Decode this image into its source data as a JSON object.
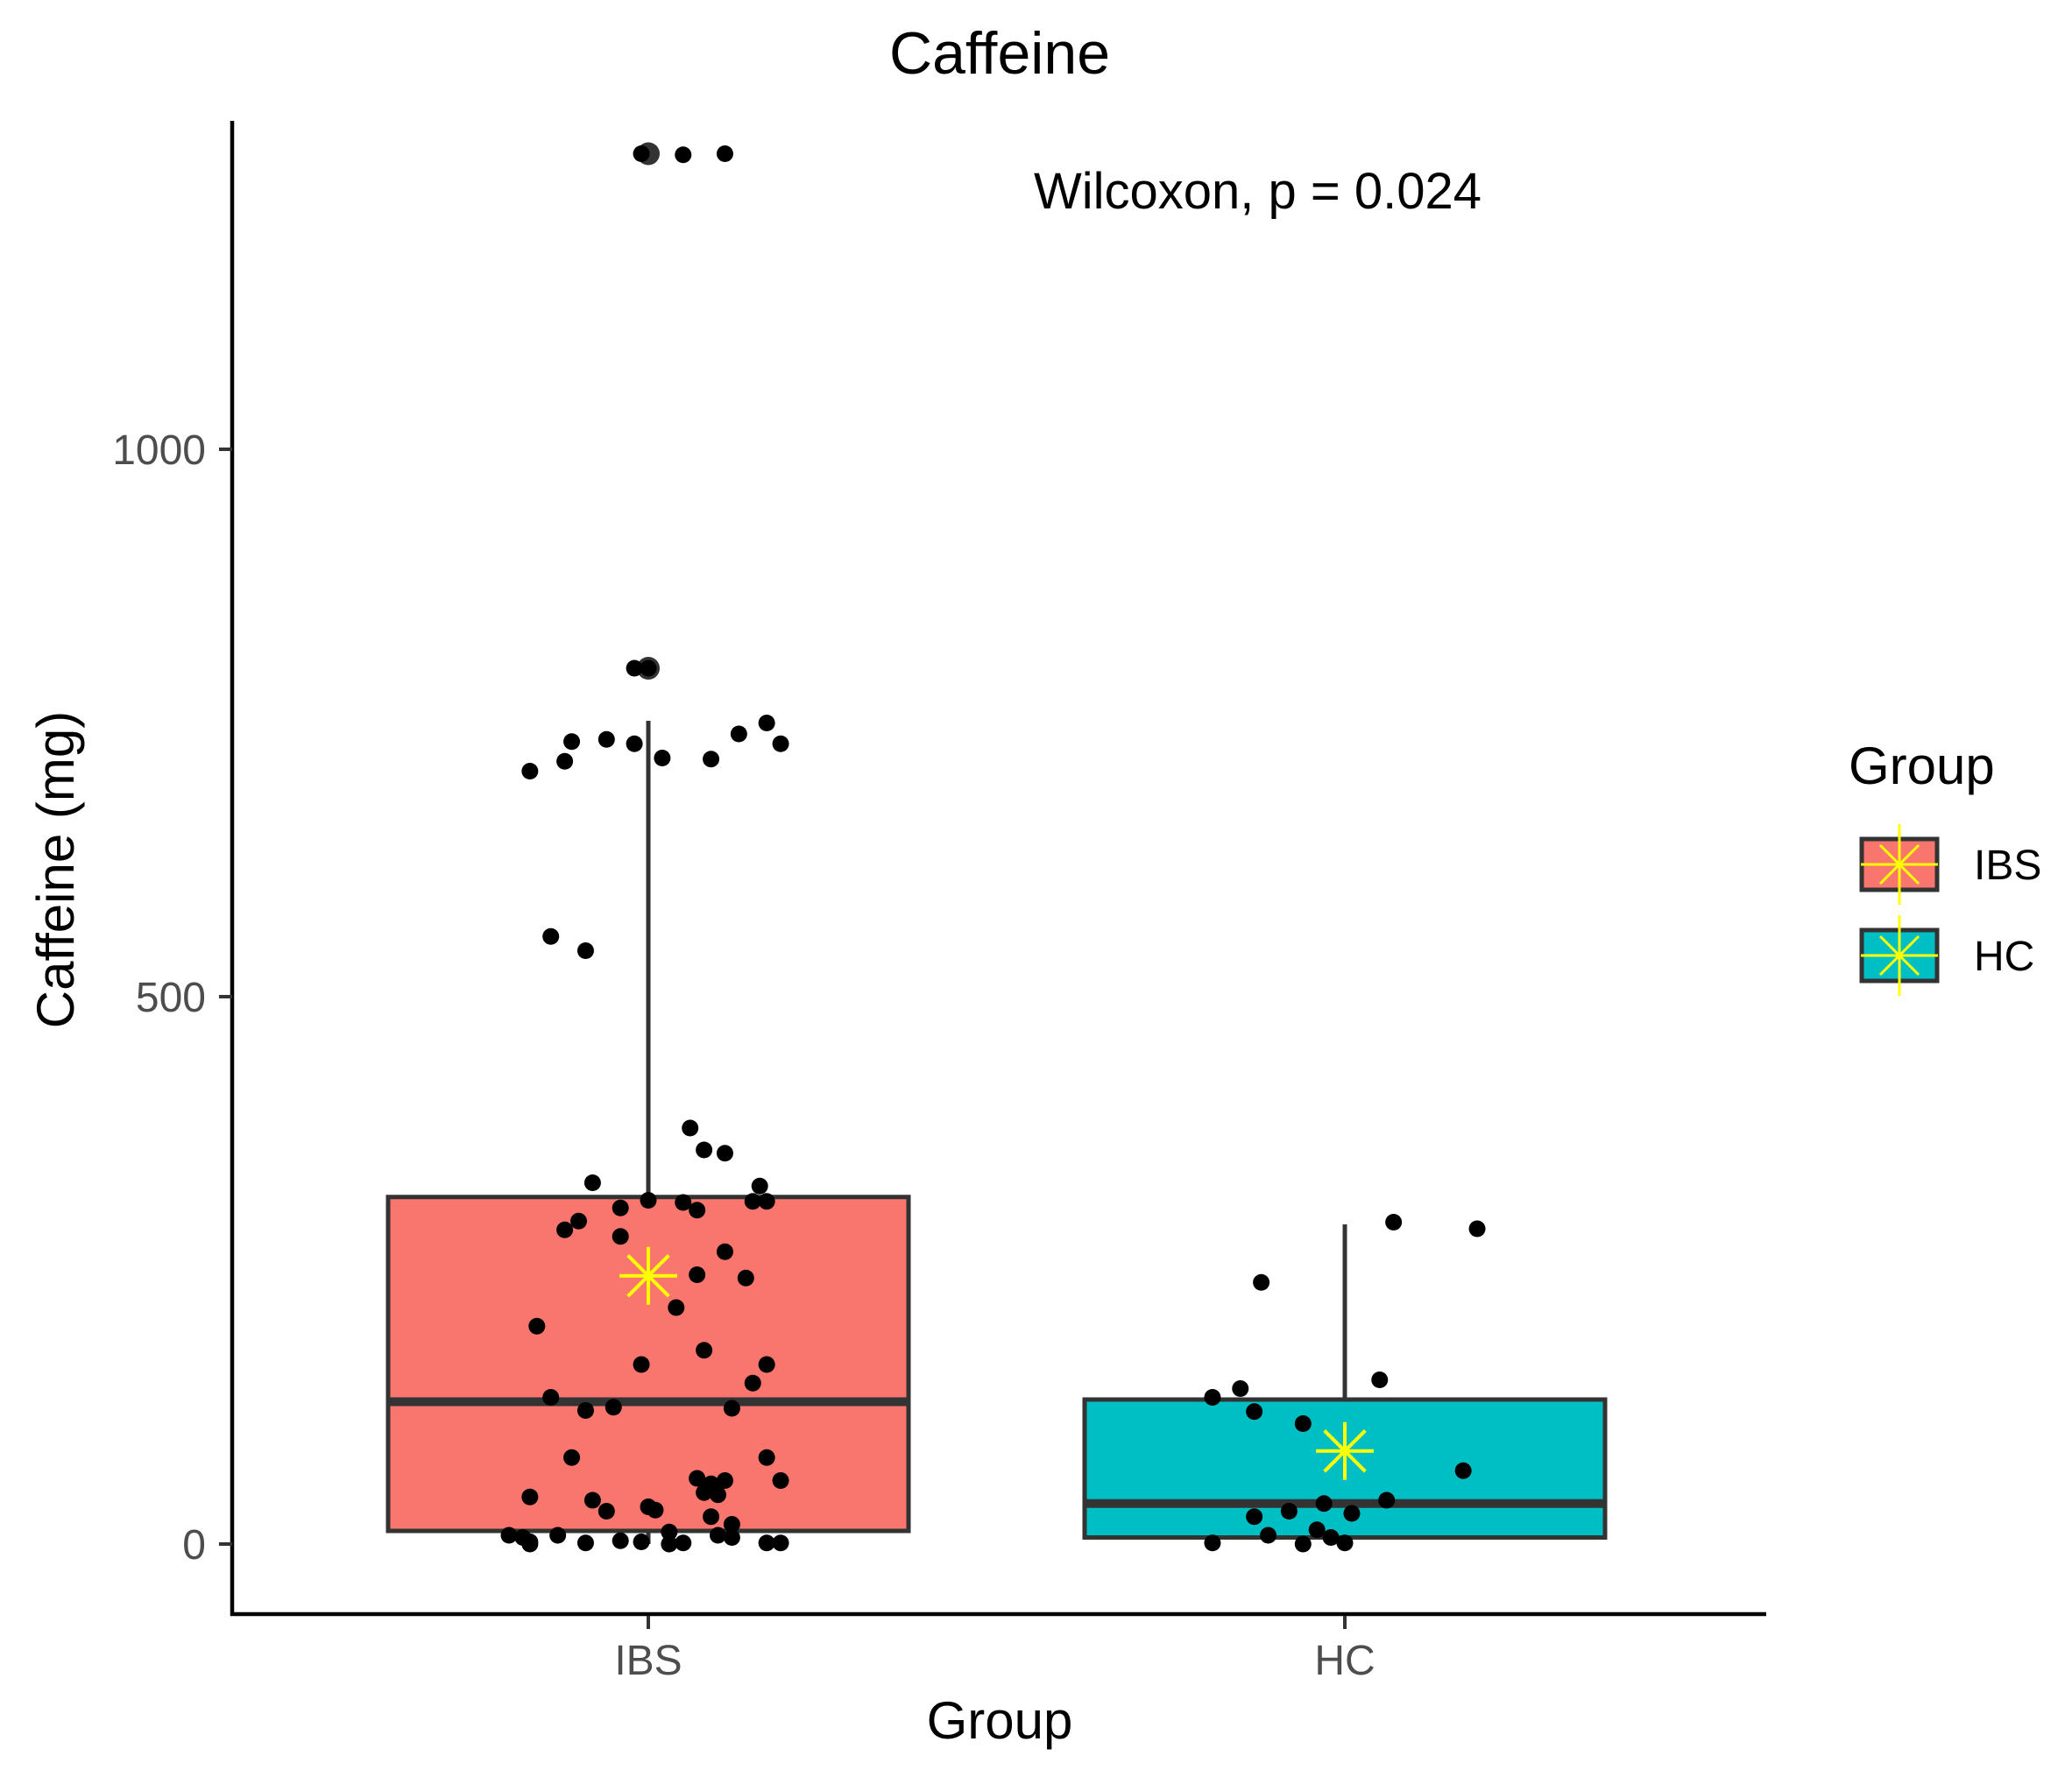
{
  "chart_data": {
    "type": "boxplot",
    "title": "Caffeine",
    "xlabel": "Group",
    "ylabel": "Caffeine (mg)",
    "ylim": [
      -64,
      1300
    ],
    "yticks": [
      0,
      500,
      1000
    ],
    "categories": [
      "IBS",
      "HC"
    ],
    "annotation": "Wilcoxon, p = 0.024",
    "legend": {
      "title": "Group",
      "position": "right",
      "entries": [
        {
          "label": "IBS",
          "fill": "#F8766D"
        },
        {
          "label": "HC",
          "fill": "#00BFC4"
        }
      ]
    },
    "colors": {
      "IBS": "#F8766D",
      "HC": "#00BFC4",
      "mean_marker": "#FFFF00",
      "box_line": "#333333",
      "point": "#000000"
    },
    "series": [
      {
        "name": "IBS",
        "box": {
          "q1": 12,
          "median": 130,
          "q3": 317,
          "whisker_low": 0,
          "whisker_high": 752
        },
        "mean": 245,
        "outliers": [
          1270,
          800
        ],
        "points": [
          {
            "x_offset": -0.01,
            "y": 1270
          },
          {
            "x_offset": 0.05,
            "y": 1269
          },
          {
            "x_offset": 0.11,
            "y": 1270
          },
          {
            "x_offset": -0.02,
            "y": 800
          },
          {
            "x_offset": 0.0,
            "y": 800
          },
          {
            "x_offset": -0.17,
            "y": 706
          },
          {
            "x_offset": -0.12,
            "y": 715
          },
          {
            "x_offset": -0.11,
            "y": 733
          },
          {
            "x_offset": -0.06,
            "y": 735
          },
          {
            "x_offset": -0.02,
            "y": 731
          },
          {
            "x_offset": 0.02,
            "y": 718
          },
          {
            "x_offset": 0.09,
            "y": 717
          },
          {
            "x_offset": 0.13,
            "y": 740
          },
          {
            "x_offset": 0.17,
            "y": 750
          },
          {
            "x_offset": 0.19,
            "y": 731
          },
          {
            "x_offset": -0.14,
            "y": 555
          },
          {
            "x_offset": -0.09,
            "y": 542
          },
          {
            "x_offset": 0.06,
            "y": 380
          },
          {
            "x_offset": 0.08,
            "y": 360
          },
          {
            "x_offset": 0.11,
            "y": 357
          },
          {
            "x_offset": -0.08,
            "y": 330
          },
          {
            "x_offset": 0.16,
            "y": 327
          },
          {
            "x_offset": 0.15,
            "y": 313
          },
          {
            "x_offset": 0.17,
            "y": 313
          },
          {
            "x_offset": -0.04,
            "y": 307
          },
          {
            "x_offset": 0.0,
            "y": 314
          },
          {
            "x_offset": 0.05,
            "y": 312
          },
          {
            "x_offset": 0.07,
            "y": 305
          },
          {
            "x_offset": -0.1,
            "y": 295
          },
          {
            "x_offset": -0.12,
            "y": 287
          },
          {
            "x_offset": -0.04,
            "y": 281
          },
          {
            "x_offset": 0.11,
            "y": 267
          },
          {
            "x_offset": 0.07,
            "y": 246
          },
          {
            "x_offset": 0.14,
            "y": 243
          },
          {
            "x_offset": 0.04,
            "y": 216
          },
          {
            "x_offset": -0.16,
            "y": 199
          },
          {
            "x_offset": 0.08,
            "y": 177
          },
          {
            "x_offset": -0.01,
            "y": 164
          },
          {
            "x_offset": 0.17,
            "y": 164
          },
          {
            "x_offset": 0.15,
            "y": 147
          },
          {
            "x_offset": -0.14,
            "y": 134
          },
          {
            "x_offset": -0.09,
            "y": 122
          },
          {
            "x_offset": -0.05,
            "y": 125
          },
          {
            "x_offset": 0.12,
            "y": 124
          },
          {
            "x_offset": -0.11,
            "y": 79
          },
          {
            "x_offset": 0.17,
            "y": 79
          },
          {
            "x_offset": 0.07,
            "y": 60
          },
          {
            "x_offset": 0.09,
            "y": 55
          },
          {
            "x_offset": 0.11,
            "y": 58
          },
          {
            "x_offset": 0.19,
            "y": 58
          },
          {
            "x_offset": 0.08,
            "y": 47
          },
          {
            "x_offset": 0.1,
            "y": 45
          },
          {
            "x_offset": -0.17,
            "y": 43
          },
          {
            "x_offset": -0.08,
            "y": 40
          },
          {
            "x_offset": -0.06,
            "y": 30
          },
          {
            "x_offset": 0.0,
            "y": 34
          },
          {
            "x_offset": 0.01,
            "y": 31
          },
          {
            "x_offset": 0.09,
            "y": 25
          },
          {
            "x_offset": 0.12,
            "y": 18
          },
          {
            "x_offset": -0.2,
            "y": 8
          },
          {
            "x_offset": -0.18,
            "y": 6
          },
          {
            "x_offset": -0.13,
            "y": 8
          },
          {
            "x_offset": 0.03,
            "y": 11
          },
          {
            "x_offset": 0.1,
            "y": 8
          },
          {
            "x_offset": 0.12,
            "y": 6
          },
          {
            "x_offset": -0.17,
            "y": 2
          },
          {
            "x_offset": -0.17,
            "y": 0
          },
          {
            "x_offset": -0.09,
            "y": 1
          },
          {
            "x_offset": -0.04,
            "y": 3
          },
          {
            "x_offset": -0.01,
            "y": 2
          },
          {
            "x_offset": 0.03,
            "y": 0
          },
          {
            "x_offset": 0.05,
            "y": 1
          },
          {
            "x_offset": 0.17,
            "y": 1
          },
          {
            "x_offset": 0.19,
            "y": 1
          }
        ]
      },
      {
        "name": "HC",
        "box": {
          "q1": 6,
          "median": 37,
          "q3": 132,
          "whisker_low": 0,
          "whisker_high": 292
        },
        "mean": 85,
        "outliers": [],
        "points": [
          {
            "x_offset": 0.07,
            "y": 294
          },
          {
            "x_offset": 0.19,
            "y": 288
          },
          {
            "x_offset": -0.12,
            "y": 239
          },
          {
            "x_offset": 0.05,
            "y": 150
          },
          {
            "x_offset": -0.15,
            "y": 142
          },
          {
            "x_offset": -0.19,
            "y": 134
          },
          {
            "x_offset": -0.13,
            "y": 121
          },
          {
            "x_offset": -0.06,
            "y": 110
          },
          {
            "x_offset": 0.17,
            "y": 67
          },
          {
            "x_offset": 0.06,
            "y": 40
          },
          {
            "x_offset": -0.03,
            "y": 37
          },
          {
            "x_offset": -0.08,
            "y": 30
          },
          {
            "x_offset": 0.01,
            "y": 28
          },
          {
            "x_offset": -0.13,
            "y": 25
          },
          {
            "x_offset": -0.04,
            "y": 13
          },
          {
            "x_offset": -0.11,
            "y": 8
          },
          {
            "x_offset": -0.02,
            "y": 6
          },
          {
            "x_offset": -0.19,
            "y": 1
          },
          {
            "x_offset": -0.06,
            "y": 0
          },
          {
            "x_offset": 0.0,
            "y": 1
          }
        ]
      }
    ]
  }
}
